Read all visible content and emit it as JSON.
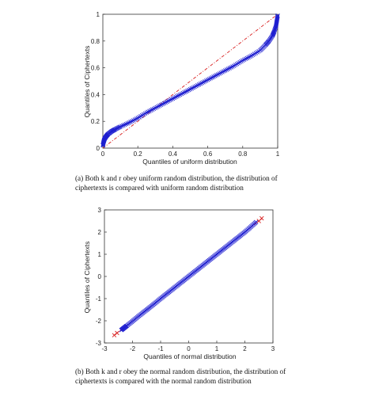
{
  "chart_data": [
    {
      "type": "scatter",
      "xlabel": "Quantiles of uniform distribution",
      "ylabel": "Quantiles of Ciphertexts",
      "xlim": [
        0,
        1
      ],
      "ylim": [
        0,
        1
      ],
      "xticks": [
        "0",
        "0.2",
        "0.4",
        "0.6",
        "0.8",
        "1"
      ],
      "yticks": [
        "0",
        "0.2",
        "0.4",
        "0.6",
        "0.8",
        "1"
      ],
      "grid": false,
      "series": [
        {
          "marker": "x",
          "color": "#1f1fd0",
          "points": [
            [
              0.0,
              0.02
            ],
            [
              0.005,
              0.05
            ],
            [
              0.01,
              0.07
            ],
            [
              0.02,
              0.09
            ],
            [
              0.03,
              0.105
            ],
            [
              0.05,
              0.125
            ],
            [
              0.07,
              0.14
            ],
            [
              0.1,
              0.16
            ],
            [
              0.15,
              0.19
            ],
            [
              0.2,
              0.225
            ],
            [
              0.25,
              0.265
            ],
            [
              0.3,
              0.3
            ],
            [
              0.35,
              0.335
            ],
            [
              0.4,
              0.37
            ],
            [
              0.45,
              0.405
            ],
            [
              0.5,
              0.44
            ],
            [
              0.55,
              0.475
            ],
            [
              0.6,
              0.51
            ],
            [
              0.65,
              0.545
            ],
            [
              0.7,
              0.58
            ],
            [
              0.75,
              0.615
            ],
            [
              0.8,
              0.655
            ],
            [
              0.85,
              0.69
            ],
            [
              0.9,
              0.73
            ],
            [
              0.93,
              0.77
            ],
            [
              0.95,
              0.8
            ],
            [
              0.97,
              0.84
            ],
            [
              0.98,
              0.87
            ],
            [
              0.99,
              0.91
            ],
            [
              0.995,
              0.95
            ],
            [
              1.0,
              0.99
            ]
          ]
        },
        {
          "style": "dash-dot line",
          "color": "#d81e1e",
          "points": [
            [
              0,
              0
            ],
            [
              1,
              1
            ]
          ]
        }
      ],
      "caption": "(a)  Both k and r obey uniform random distribution, the distribution of ciphertexts is compared with uniform random distribution",
      "caption_lines": [
        "(a)  Both k and r obey uniform random distribution, the distribution of",
        "ciphertexts is compared with uniform random distribution"
      ]
    },
    {
      "type": "scatter",
      "xlabel": "Quantiles of normal distribution",
      "ylabel": "Quantiles of Ciphertexts",
      "xlim": [
        -3,
        3
      ],
      "ylim": [
        -3,
        3
      ],
      "xticks": [
        "-3",
        "-2",
        "-1",
        "0",
        "1",
        "2",
        "3"
      ],
      "yticks": [
        "-3",
        "-2",
        "-1",
        "0",
        "1",
        "2",
        "3"
      ],
      "grid": false,
      "series": [
        {
          "marker": "x",
          "color": "#1f1fd0",
          "points": [
            [
              -2.4,
              -2.42
            ],
            [
              -2.3,
              -2.32
            ],
            [
              -2.2,
              -2.22
            ],
            [
              -2.0,
              -2.02
            ],
            [
              -1.8,
              -1.81
            ],
            [
              -1.6,
              -1.61
            ],
            [
              -1.4,
              -1.41
            ],
            [
              -1.2,
              -1.21
            ],
            [
              -1.0,
              -1.0
            ],
            [
              -0.8,
              -0.8
            ],
            [
              -0.6,
              -0.6
            ],
            [
              -0.4,
              -0.4
            ],
            [
              -0.2,
              -0.2
            ],
            [
              0.0,
              0.0
            ],
            [
              0.2,
              0.2
            ],
            [
              0.4,
              0.4
            ],
            [
              0.6,
              0.6
            ],
            [
              0.8,
              0.8
            ],
            [
              1.0,
              1.0
            ],
            [
              1.2,
              1.2
            ],
            [
              1.4,
              1.4
            ],
            [
              1.6,
              1.6
            ],
            [
              1.8,
              1.8
            ],
            [
              2.0,
              2.0
            ],
            [
              2.2,
              2.22
            ],
            [
              2.4,
              2.45
            ]
          ]
        },
        {
          "marker": "x",
          "color": "#d81e1e",
          "points": [
            [
              -2.65,
              -2.65
            ],
            [
              -2.55,
              -2.55
            ],
            [
              2.5,
              2.5
            ],
            [
              2.6,
              2.62
            ]
          ]
        },
        {
          "style": "dash-dot line",
          "color": "#d81e1e",
          "points": [
            [
              -2.65,
              -2.65
            ],
            [
              2.65,
              2.65
            ]
          ]
        }
      ],
      "caption": "(b)  Both k and r obey the normal random distribution, the distribution of ciphertexts is compared with the normal random distribution",
      "caption_lines": [
        "(b)  Both k and r obey the normal random distribution, the distribution of",
        "ciphertexts is compared with the normal random distribution"
      ]
    }
  ]
}
